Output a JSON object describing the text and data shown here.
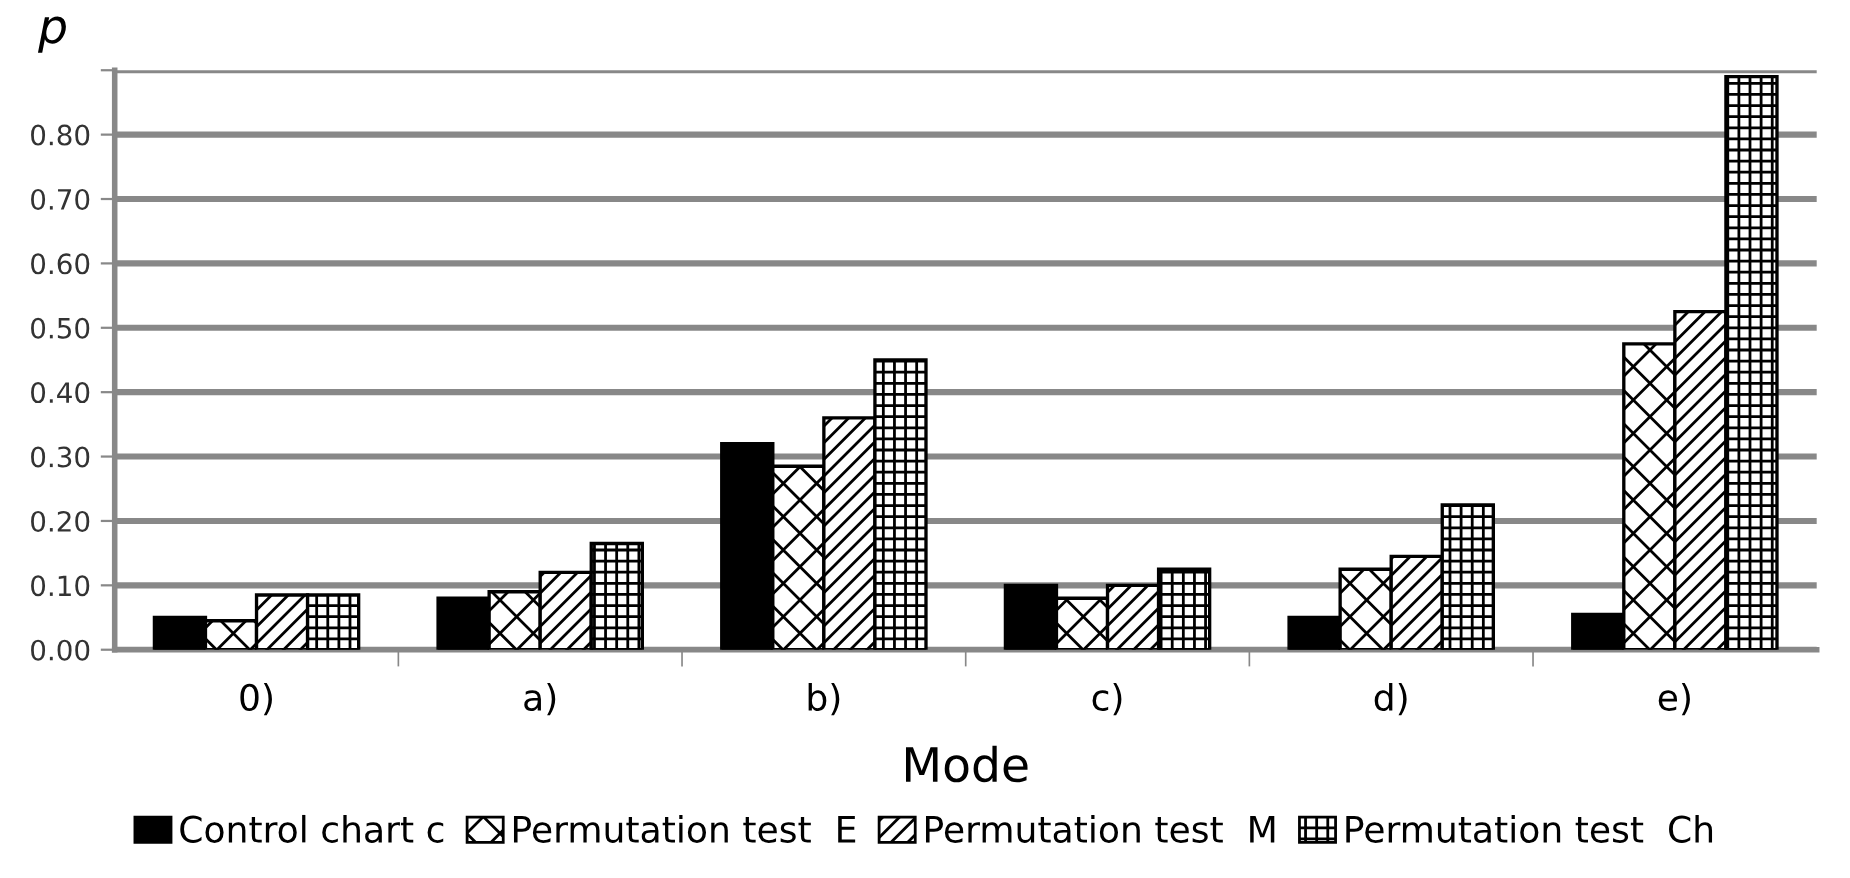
{
  "chart_data": {
    "type": "bar",
    "xlabel": "Mode",
    "ylabel": "p",
    "categories": [
      "0)",
      "a)",
      "b)",
      "c)",
      "d)",
      "e)"
    ],
    "series": [
      {
        "name": "Control chart c",
        "color": "#000000",
        "values": [
          0.05,
          0.08,
          0.32,
          0.1,
          0.05,
          0.055
        ]
      },
      {
        "name": "Permutation test  E",
        "color": "#000000",
        "values": [
          0.045,
          0.09,
          0.285,
          0.08,
          0.125,
          0.475
        ]
      },
      {
        "name": "Permutation test  M",
        "color": "#000000",
        "values": [
          0.085,
          0.12,
          0.36,
          0.1,
          0.145,
          0.525
        ]
      },
      {
        "name": "Permutation test  Ch",
        "color": "#000000",
        "values": [
          0.085,
          0.165,
          0.45,
          0.125,
          0.225,
          0.89
        ]
      }
    ],
    "ylim": [
      0,
      0.9
    ],
    "yticks": [
      {
        "value": 0,
        "label": "0.00"
      },
      {
        "value": 0.1,
        "label": "0.10"
      },
      {
        "value": 0.2,
        "label": "0.20"
      },
      {
        "value": 0.3,
        "label": "0.30"
      },
      {
        "value": 0.4,
        "label": "0.40"
      },
      {
        "value": 0.5,
        "label": "0.50"
      },
      {
        "value": 0.6,
        "label": "0.60"
      },
      {
        "value": 0.7,
        "label": "0.70"
      },
      {
        "value": 0.8,
        "label": "0.80"
      },
      {
        "value": 0.9,
        "label": null
      }
    ],
    "grid": "y",
    "legend": "bottom"
  }
}
